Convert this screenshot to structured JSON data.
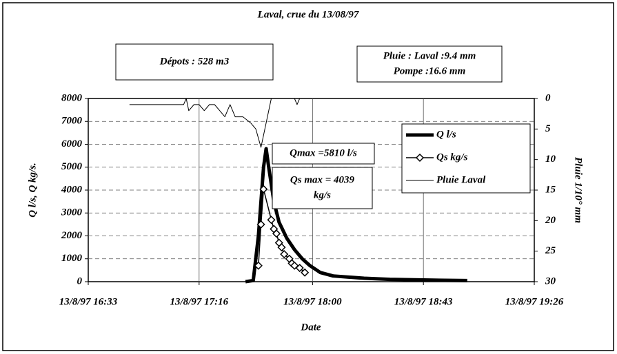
{
  "chart_data": {
    "type": "line",
    "title": "Laval, crue du 13/08/97",
    "x_label": "Date",
    "y_label": "Q l/s, Q kg/s.",
    "y2_label": "Pluie 1/10° mm",
    "xlim": [
      "13/8/97 16:33",
      "13/8/97 19:26"
    ],
    "xticks": [
      "13/8/97 16:33",
      "13/8/97 17:16",
      "13/8/97 18:00",
      "13/8/97 18:43",
      "13/8/97 19:26"
    ],
    "ylim": [
      0,
      8000
    ],
    "yticks": [
      0,
      1000,
      2000,
      3000,
      4000,
      5000,
      6000,
      7000,
      8000
    ],
    "y2lim": [
      30,
      0
    ],
    "y2ticks": [
      0,
      5,
      10,
      15,
      20,
      25,
      30
    ],
    "grid": true,
    "legend": "upper right",
    "annotations": [
      {
        "lines": [
          "Dépots : 528 m3"
        ]
      },
      {
        "lines": [
          "Pluie :  Laval :9.4 mm",
          "Pompe :16.6 mm"
        ]
      },
      {
        "lines": [
          "Qmax =5810 l/s"
        ]
      },
      {
        "lines": [
          "Qs max = 4039",
          "kg/s"
        ]
      }
    ],
    "series": [
      {
        "name": "Q l/s",
        "color": "#000000",
        "style": "thick",
        "x": [
          "13/8/97 17:34",
          "13/8/97 17:37",
          "13/8/97 17:39",
          "13/8/97 17:41",
          "13/8/97 17:42",
          "13/8/97 17:43",
          "13/8/97 17:45",
          "13/8/97 17:47",
          "13/8/97 17:50",
          "13/8/97 17:53",
          "13/8/97 17:56",
          "13/8/97 17:59",
          "13/8/97 18:03",
          "13/8/97 18:08",
          "13/8/97 18:14",
          "13/8/97 18:20",
          "13/8/97 18:30",
          "13/8/97 18:45",
          "13/8/97 19:00"
        ],
        "values": [
          0,
          50,
          2000,
          5000,
          5810,
          5000,
          3500,
          2600,
          1900,
          1400,
          1000,
          700,
          400,
          250,
          200,
          150,
          100,
          70,
          50
        ]
      },
      {
        "name": "Qs kg/s",
        "color": "#000000",
        "style": "diamond",
        "x": [
          "13/8/97 17:39",
          "13/8/97 17:40",
          "13/8/97 17:41",
          "13/8/97 17:44",
          "13/8/97 17:45",
          "13/8/97 17:46",
          "13/8/97 17:47",
          "13/8/97 17:48",
          "13/8/97 17:49",
          "13/8/97 17:51",
          "13/8/97 17:52",
          "13/8/97 17:53",
          "13/8/97 17:55",
          "13/8/97 17:57"
        ],
        "values": [
          700,
          2500,
          4039,
          2700,
          2300,
          2100,
          1700,
          1500,
          1200,
          1000,
          800,
          700,
          600,
          400
        ]
      },
      {
        "name": "Pluie Laval",
        "color": "#000000",
        "style": "thin",
        "axis": "y2",
        "x": [
          "13/8/97 16:49",
          "13/8/97 17:10",
          "13/8/97 17:11",
          "13/8/97 17:12",
          "13/8/97 17:14",
          "13/8/97 17:16",
          "13/8/97 17:18",
          "13/8/97 17:20",
          "13/8/97 17:22",
          "13/8/97 17:24",
          "13/8/97 17:26",
          "13/8/97 17:28",
          "13/8/97 17:30",
          "13/8/97 17:33",
          "13/8/97 17:36",
          "13/8/97 17:38",
          "13/8/97 17:40",
          "13/8/97 17:42",
          "13/8/97 17:43",
          "13/8/97 17:44",
          "13/8/97 17:53",
          "13/8/97 17:54",
          "13/8/97 17:55"
        ],
        "values": [
          1,
          1,
          0,
          2,
          1,
          1,
          2,
          1,
          1,
          2,
          3,
          1,
          3,
          3,
          4,
          5,
          8,
          4,
          2,
          0,
          0,
          1,
          0
        ]
      }
    ]
  }
}
